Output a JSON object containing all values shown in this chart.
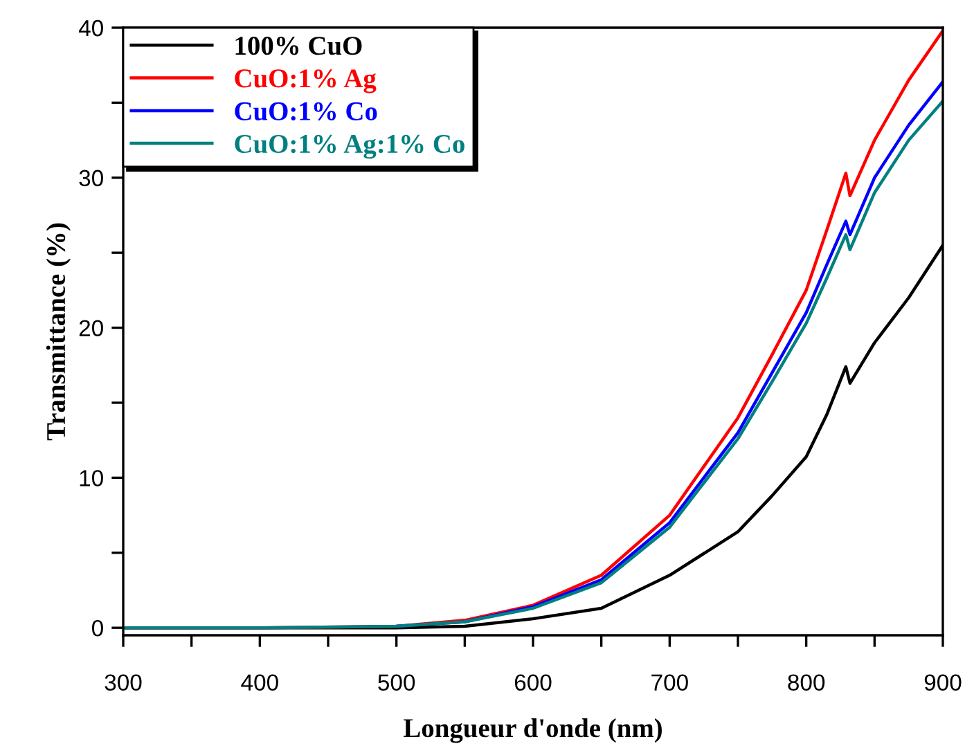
{
  "chart_data": {
    "type": "line",
    "xlabel": "Longueur d'onde (nm)",
    "ylabel": "Transmittance (%)",
    "xlim": [
      300,
      900
    ],
    "ylim": [
      -0.5,
      40
    ],
    "xticks": [
      300,
      {
        "value": 350,
        "label": null
      },
      400,
      {
        "value": 450,
        "label": null
      },
      500,
      {
        "value": 550,
        "label": null
      },
      600,
      {
        "value": 650,
        "label": null
      },
      700,
      {
        "value": 750,
        "label": null
      },
      800,
      {
        "value": 850,
        "label": null
      },
      900
    ],
    "yticks": [
      0,
      {
        "value": 5,
        "label": null
      },
      10,
      {
        "value": 15,
        "label": null
      },
      20,
      {
        "value": 25,
        "label": null
      },
      30,
      {
        "value": 35,
        "label": null
      },
      40
    ],
    "grid": false,
    "legend": "top left",
    "marker": "none",
    "line_style": "solid",
    "x": [
      300,
      400,
      500,
      550,
      600,
      650,
      700,
      750,
      775,
      800,
      815,
      829,
      832,
      850,
      875,
      900
    ],
    "series": [
      {
        "name": "100% CuO",
        "color": "#000000",
        "values": [
          0,
          0,
          0,
          0.1,
          0.6,
          1.3,
          3.5,
          6.4,
          8.8,
          11.4,
          14.2,
          17.4,
          16.3,
          19,
          22,
          25.5
        ]
      },
      {
        "name": "CuO:1% Ag",
        "color": "#ff0000",
        "values": [
          0,
          0,
          0.1,
          0.5,
          1.5,
          3.5,
          7.5,
          14,
          18.2,
          22.5,
          26.5,
          30.3,
          28.8,
          32.5,
          36.5,
          39.8
        ]
      },
      {
        "name": "CuO:1% Co",
        "color": "#0000ff",
        "values": [
          null,
          null,
          0.1,
          0.4,
          1.4,
          3.2,
          7,
          13,
          17,
          21,
          24.2,
          27.1,
          26.2,
          30,
          33.5,
          36.4
        ]
      },
      {
        "name": "CuO:1% Ag:1% Co",
        "color": "#008080",
        "values": [
          0,
          0,
          0.1,
          0.4,
          1.3,
          3.0,
          6.7,
          12.6,
          16.4,
          20.3,
          23.3,
          26.2,
          25.2,
          29,
          32.5,
          35.1
        ]
      }
    ]
  }
}
